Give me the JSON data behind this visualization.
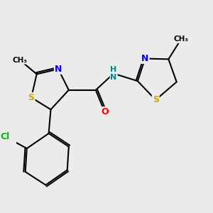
{
  "bg_color": "#ebebeb",
  "bond_color": "#000000",
  "bond_width": 1.5,
  "atom_colors": {
    "S": "#ccaa00",
    "N": "#0000ff",
    "O": "#ff0000",
    "Cl": "#00bb00",
    "H": "#008888",
    "C": "#000000"
  },
  "font_size": 8.5,
  "figsize": [
    3.0,
    3.0
  ],
  "dpi": 100,
  "xlim": [
    -0.3,
    6.2
  ],
  "ylim": [
    -2.8,
    2.8
  ]
}
